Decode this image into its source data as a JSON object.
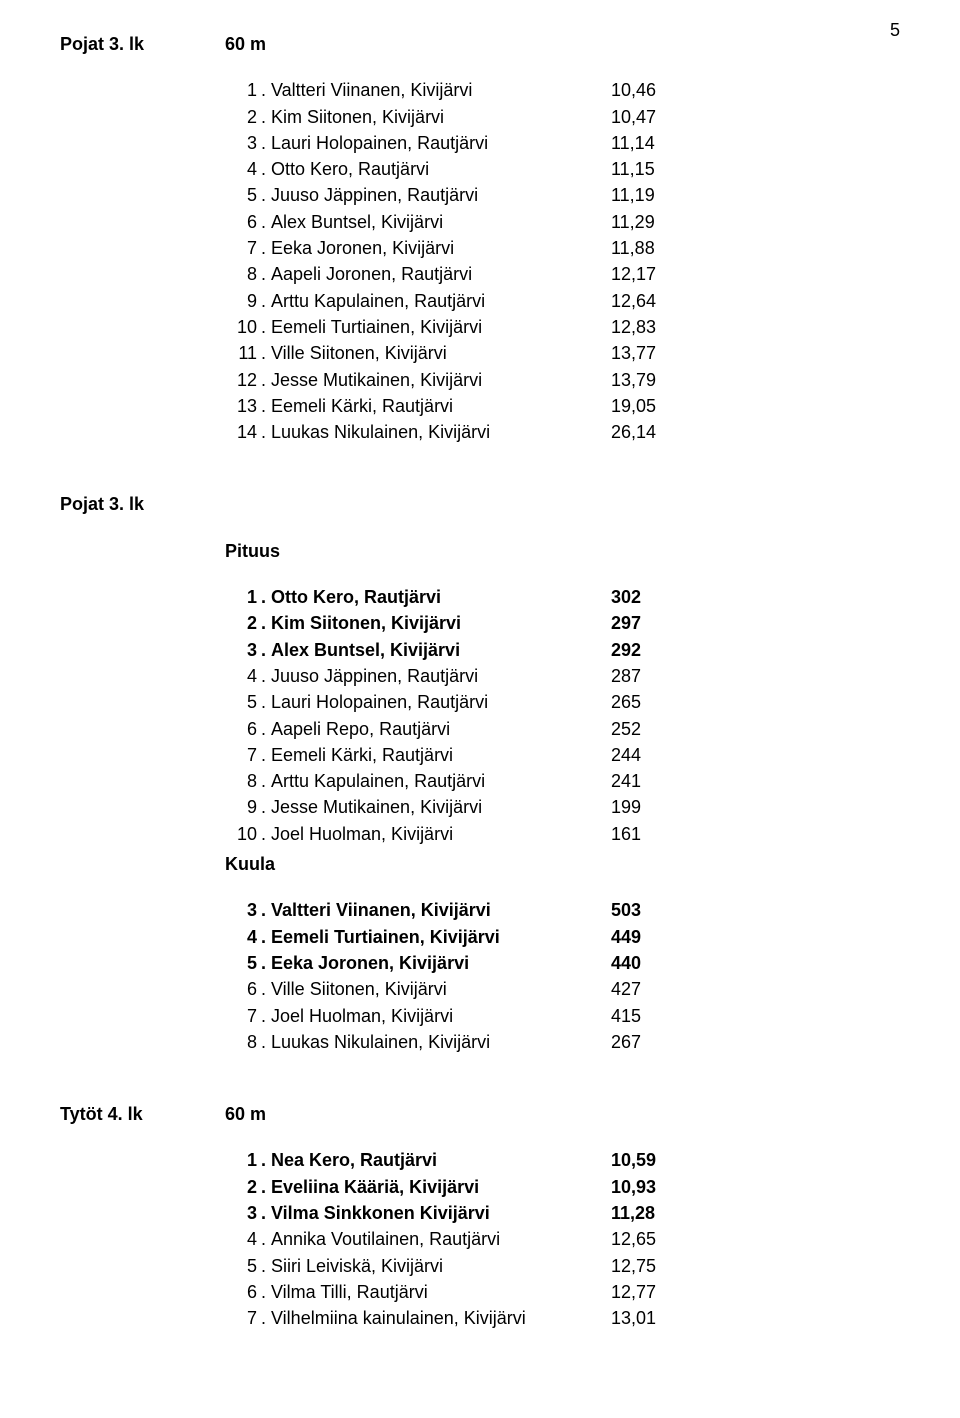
{
  "pageNumber": "5",
  "sections": [
    {
      "category": "Pojat 3. lk",
      "events": [
        {
          "label": "60 m",
          "inline": true,
          "rows": [
            {
              "rank": "1",
              "name": "Valtteri Viinanen, Kivijärvi",
              "value": "10,46",
              "bold": false
            },
            {
              "rank": "2",
              "name": "Kim Siitonen, Kivijärvi",
              "value": "10,47",
              "bold": false
            },
            {
              "rank": "3",
              "name": "Lauri Holopainen, Rautjärvi",
              "value": "11,14",
              "bold": false
            },
            {
              "rank": "4",
              "name": "Otto Kero, Rautjärvi",
              "value": "11,15",
              "bold": false
            },
            {
              "rank": "5",
              "name": "Juuso Jäppinen, Rautjärvi",
              "value": "11,19",
              "bold": false
            },
            {
              "rank": "6",
              "name": "Alex Buntsel, Kivijärvi",
              "value": "11,29",
              "bold": false
            },
            {
              "rank": "7",
              "name": "Eeka Joronen, Kivijärvi",
              "value": "11,88",
              "bold": false
            },
            {
              "rank": "8",
              "name": "Aapeli Joronen, Rautjärvi",
              "value": "12,17",
              "bold": false
            },
            {
              "rank": "9",
              "name": "Arttu Kapulainen, Rautjärvi",
              "value": "12,64",
              "bold": false
            },
            {
              "rank": "10",
              "name": "Eemeli Turtiainen, Kivijärvi",
              "value": "12,83",
              "bold": false
            },
            {
              "rank": "11",
              "name": "Ville Siitonen, Kivijärvi",
              "value": "13,77",
              "bold": false
            },
            {
              "rank": "12",
              "name": "Jesse Mutikainen, Kivijärvi",
              "value": "13,79",
              "bold": false
            },
            {
              "rank": "13",
              "name": "Eemeli Kärki, Rautjärvi",
              "value": "19,05",
              "bold": false
            },
            {
              "rank": "14",
              "name": "Luukas Nikulainen, Kivijärvi",
              "value": "26,14",
              "bold": false
            }
          ]
        }
      ]
    },
    {
      "category": "Pojat 3. lk",
      "events": [
        {
          "label": "Pituus",
          "inline": false,
          "rows": [
            {
              "rank": "1",
              "name": "Otto Kero, Rautjärvi",
              "value": "302",
              "bold": true
            },
            {
              "rank": "2",
              "name": "Kim Siitonen, Kivijärvi",
              "value": "297",
              "bold": true
            },
            {
              "rank": "3",
              "name": "Alex Buntsel, Kivijärvi",
              "value": "292",
              "bold": true
            },
            {
              "rank": "4",
              "name": "Juuso Jäppinen, Rautjärvi",
              "value": "287",
              "bold": false
            },
            {
              "rank": "5",
              "name": "Lauri Holopainen, Rautjärvi",
              "value": "265",
              "bold": false
            },
            {
              "rank": "6",
              "name": "Aapeli Repo, Rautjärvi",
              "value": "252",
              "bold": false
            },
            {
              "rank": "7",
              "name": "Eemeli Kärki, Rautjärvi",
              "value": "244",
              "bold": false
            },
            {
              "rank": "8",
              "name": "Arttu Kapulainen, Rautjärvi",
              "value": "241",
              "bold": false
            },
            {
              "rank": "9",
              "name": "Jesse Mutikainen, Kivijärvi",
              "value": "199",
              "bold": false
            },
            {
              "rank": "10",
              "name": "Joel Huolman, Kivijärvi",
              "value": "161",
              "bold": false
            }
          ]
        },
        {
          "label": "Kuula",
          "inline": false,
          "rows": [
            {
              "rank": "3",
              "name": "Valtteri Viinanen, Kivijärvi",
              "value": "503",
              "bold": true
            },
            {
              "rank": "4",
              "name": "Eemeli Turtiainen, Kivijärvi",
              "value": "449",
              "bold": true
            },
            {
              "rank": "5",
              "name": "Eeka Joronen, Kivijärvi",
              "value": "440",
              "bold": true
            },
            {
              "rank": "6",
              "name": "Ville Siitonen, Kivijärvi",
              "value": "427",
              "bold": false
            },
            {
              "rank": "7",
              "name": "Joel Huolman, Kivijärvi",
              "value": "415",
              "bold": false
            },
            {
              "rank": "8",
              "name": "Luukas Nikulainen, Kivijärvi",
              "value": "267",
              "bold": false
            }
          ]
        }
      ]
    },
    {
      "category": "Tytöt 4. lk",
      "events": [
        {
          "label": "60 m",
          "inline": true,
          "rows": [
            {
              "rank": "1",
              "name": "Nea Kero, Rautjärvi",
              "value": "10,59",
              "bold": true
            },
            {
              "rank": "2",
              "name": "Eveliina Kääriä, Kivijärvi",
              "value": "10,93",
              "bold": true
            },
            {
              "rank": "3",
              "name": " Vilma Sinkkonen Kivijärvi",
              "value": "11,28",
              "bold": true
            },
            {
              "rank": "4",
              "name": "Annika Voutilainen, Rautjärvi",
              "value": "12,65",
              "bold": false
            },
            {
              "rank": "5",
              "name": "Siiri Leiviskä, Kivijärvi",
              "value": "12,75",
              "bold": false
            },
            {
              "rank": "6",
              "name": "Vilma Tilli, Rautjärvi",
              "value": "12,77",
              "bold": false
            },
            {
              "rank": "7",
              "name": "Vilhelmiina kainulainen, Kivijärvi",
              "value": "13,01",
              "bold": false
            }
          ]
        }
      ]
    }
  ]
}
